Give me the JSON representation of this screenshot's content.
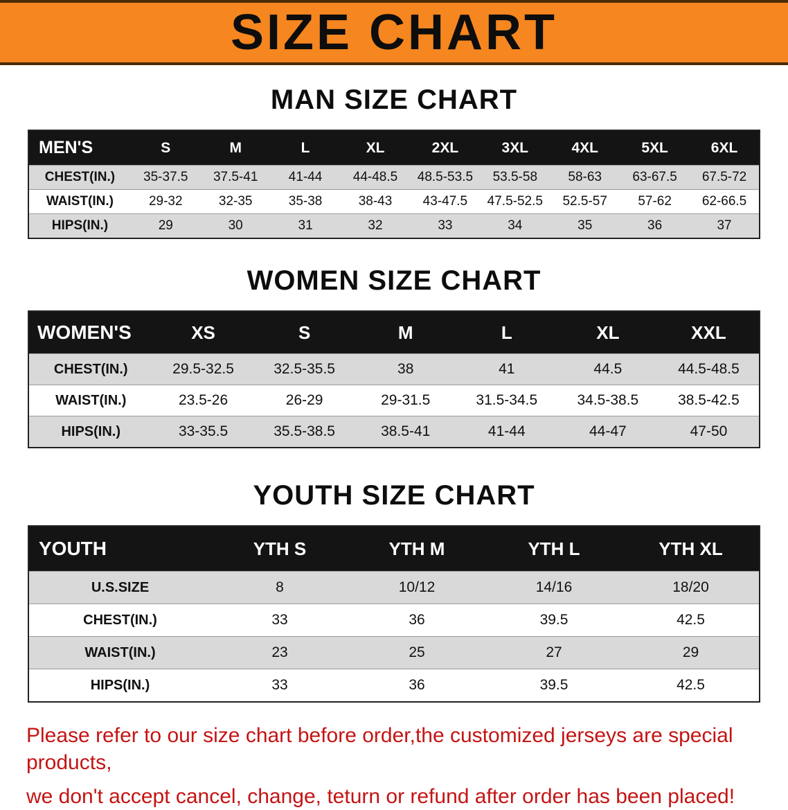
{
  "banner": {
    "title": "SIZE CHART"
  },
  "chart_data": [
    {
      "type": "table",
      "title": "MAN SIZE CHART",
      "row_header": "MEN'S",
      "columns": [
        "S",
        "M",
        "L",
        "XL",
        "2XL",
        "3XL",
        "4XL",
        "5XL",
        "6XL"
      ],
      "rows": [
        {
          "label": "CHEST(IN.)",
          "values": [
            "35-37.5",
            "37.5-41",
            "41-44",
            "44-48.5",
            "48.5-53.5",
            "53.5-58",
            "58-63",
            "63-67.5",
            "67.5-72"
          ]
        },
        {
          "label": "WAIST(IN.)",
          "values": [
            "29-32",
            "32-35",
            "35-38",
            "38-43",
            "43-47.5",
            "47.5-52.5",
            "52.5-57",
            "57-62",
            "62-66.5"
          ]
        },
        {
          "label": "HIPS(IN.)",
          "values": [
            "29",
            "30",
            "31",
            "32",
            "33",
            "34",
            "35",
            "36",
            "37"
          ]
        }
      ]
    },
    {
      "type": "table",
      "title": "WOMEN SIZE CHART",
      "row_header": "WOMEN'S",
      "columns": [
        "XS",
        "S",
        "M",
        "L",
        "XL",
        "XXL"
      ],
      "rows": [
        {
          "label": "CHEST(IN.)",
          "values": [
            "29.5-32.5",
            "32.5-35.5",
            "38",
            "41",
            "44.5",
            "44.5-48.5"
          ]
        },
        {
          "label": "WAIST(IN.)",
          "values": [
            "23.5-26",
            "26-29",
            "29-31.5",
            "31.5-34.5",
            "34.5-38.5",
            "38.5-42.5"
          ]
        },
        {
          "label": "HIPS(IN.)",
          "values": [
            "33-35.5",
            "35.5-38.5",
            "38.5-41",
            "41-44",
            "44-47",
            "47-50"
          ]
        }
      ]
    },
    {
      "type": "table",
      "title": "YOUTH SIZE CHART",
      "row_header": "YOUTH",
      "columns": [
        "YTH S",
        "YTH M",
        "YTH L",
        "YTH XL"
      ],
      "rows": [
        {
          "label": "U.S.SIZE",
          "values": [
            "8",
            "10/12",
            "14/16",
            "18/20"
          ]
        },
        {
          "label": "CHEST(IN.)",
          "values": [
            "33",
            "36",
            "39.5",
            "42.5"
          ]
        },
        {
          "label": "WAIST(IN.)",
          "values": [
            "23",
            "25",
            "27",
            "29"
          ]
        },
        {
          "label": "HIPS(IN.)",
          "values": [
            "33",
            "36",
            "39.5",
            "42.5"
          ]
        }
      ]
    }
  ],
  "disclaimer": {
    "line1": "Please refer to our size chart before order,the customized jerseys are special products,",
    "line2": "we don't accept cancel, change, teturn or refund after order has been placed!"
  },
  "colors": {
    "banner_bg": "#F6861F",
    "table_header_bg": "#141414",
    "shaded_row_bg": "#d9d9d9",
    "disclaimer_text": "#c41414"
  }
}
